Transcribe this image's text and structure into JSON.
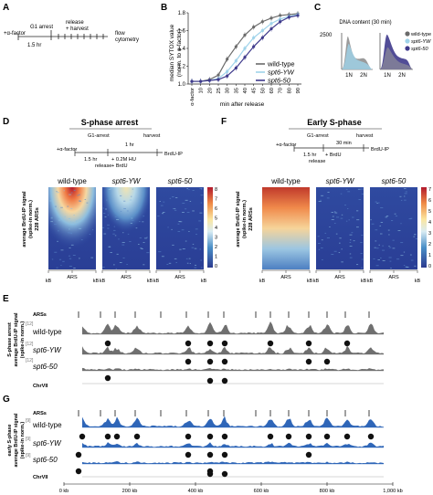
{
  "colors": {
    "wt": "#6b6b6b",
    "yw": "#9fd3ea",
    "s50": "#3f3a8c",
    "track_blue": "#2f66b8",
    "track_grey": "#6f6f6f",
    "heat_low": "#2b3a8f",
    "heat_high": "#b2182b"
  },
  "panelA": {
    "letter": "A",
    "arrest": "G1 arrest",
    "release": "release",
    "harvest": "+ harvest",
    "alpha": "+α-factor",
    "time": "1.5 hr",
    "flow": "flow",
    "cytometry": "cytometry"
  },
  "panelB": {
    "letter": "B",
    "ylabel1": "median SYTOX value",
    "ylabel2": "(norm. to α-factor)",
    "xlabel": "min after release",
    "xcat0": "α-factor",
    "legend": [
      "wild-type",
      "spt6-YW",
      "spt6-50"
    ]
  },
  "chart_data": {
    "type": "line",
    "x": [
      0,
      10,
      20,
      25,
      30,
      35,
      40,
      45,
      50,
      60,
      70,
      80,
      90
    ],
    "xticklabels": [
      "α-factor",
      "10",
      "20",
      "25",
      "30",
      "35",
      "40",
      "45",
      "50",
      "60",
      "70",
      "80",
      "90"
    ],
    "xlabel": "min after release",
    "ylabel": "median SYTOX value (norm. to α-factor)",
    "ylim": [
      1.0,
      1.8
    ],
    "yticks": [
      1.0,
      1.2,
      1.4,
      1.6,
      1.8
    ],
    "series": [
      {
        "name": "wild-type",
        "values": [
          1.03,
          1.03,
          1.05,
          1.1,
          1.28,
          1.42,
          1.55,
          1.64,
          1.7,
          1.74,
          1.77,
          1.78,
          1.79
        ]
      },
      {
        "name": "spt6-YW",
        "values": [
          1.03,
          1.03,
          1.04,
          1.06,
          1.14,
          1.26,
          1.4,
          1.52,
          1.6,
          1.68,
          1.73,
          1.76,
          1.78
        ]
      },
      {
        "name": "spt6-50",
        "values": [
          1.03,
          1.03,
          1.04,
          1.05,
          1.09,
          1.18,
          1.3,
          1.42,
          1.52,
          1.62,
          1.7,
          1.75,
          1.77
        ]
      }
    ]
  },
  "panelC": {
    "letter": "C",
    "title": "DNA content (30 min)",
    "ytick": "2500",
    "x1n": "1N",
    "x2n": "2N",
    "legend": [
      "wild-type",
      "spt6-YW",
      "spt6-50"
    ]
  },
  "panelD": {
    "letter": "D",
    "title": "S-phase arrest",
    "g1": "G1-arrest",
    "hr1": "1 hr",
    "harvest": "harvest",
    "alpha": "+α-factor",
    "time": "1.5 hr",
    "release": "release",
    "hu": "+ 0.2M HU",
    "brdu": "+ BrdU",
    "brduip": "BrdU-IP",
    "ylabel1": "average BrdU-IP signal",
    "ylabel2": "(spike-in norm.)",
    "ylabel3": "228 ARSs",
    "heatmaps": [
      "wild-type",
      "spt6-YW",
      "spt6-50"
    ],
    "cbar_ticks": [
      "8",
      "7",
      "6",
      "5",
      "4",
      "3",
      "2",
      "1",
      "0"
    ],
    "kb": "kB",
    "ars": "ARS"
  },
  "panelF": {
    "letter": "F",
    "title": "Early S-phase",
    "g1": "G1-arrest",
    "harvest": "harvest",
    "alpha": "+α-factor",
    "time": "1.5 hr",
    "release": "release",
    "min30": "30 min",
    "brdu": "+ BrdU",
    "brduip": "BrdU-IP",
    "ylabel1": "average BrdU-IP signal",
    "ylabel2": "(spike-in norm.)",
    "ylabel3": "228 ARSs",
    "heatmaps": [
      "wild-type",
      "spt6-YW",
      "spt6-50"
    ],
    "cbar_ticks": [
      "7",
      "6",
      "5",
      "4",
      "3",
      "2",
      "1",
      "0"
    ],
    "kb": "kB",
    "ars": "ARS"
  },
  "panelE": {
    "letter": "E",
    "ylabel1": "S-phase arrest",
    "ylabel2": "average BrdU-IP signal",
    "ylabel3": "(spike-in norm.)",
    "ars_label": "ARSs",
    "tracks": [
      "wild-type",
      "spt6-YW",
      "spt6-50"
    ],
    "scale": "[12]",
    "chr": "ChrVII"
  },
  "panelG": {
    "letter": "G",
    "ylabel1": "early S-phase",
    "ylabel2": "average BrdU-IP signal",
    "ylabel3": "(spike-in norm.)",
    "ars_label": "ARSs",
    "tracks": [
      "wild-type",
      "spt6-YW",
      "spt6-50"
    ],
    "scale": "[9]",
    "chr": "ChrVII",
    "axis_ticks": [
      "0 kb",
      "200 kb",
      "400 kb",
      "600 kb",
      "800 kb",
      "1,000 kb"
    ]
  }
}
